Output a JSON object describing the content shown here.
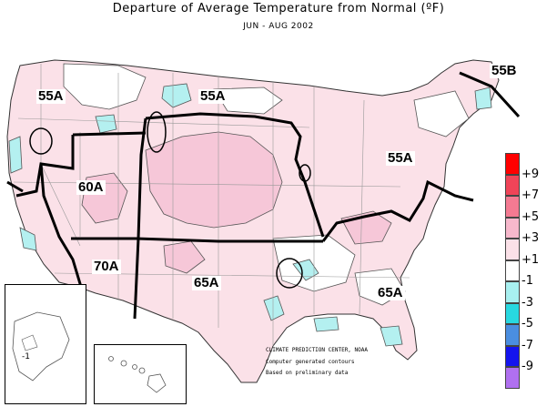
{
  "title": "Departure of Average Temperature from Normal (ºF)",
  "period": "JUN - AUG 2002",
  "colors": {
    "warm_fill": "#fbe1e8",
    "warmer_fill": "#f6c7d8",
    "cool_fill": "#b4f0f0",
    "region_boundary": "#000000",
    "contour": "#555555"
  },
  "regions": [
    {
      "label": "55A"
    },
    {
      "label": "55A"
    },
    {
      "label": "55B"
    },
    {
      "label": "55A"
    },
    {
      "label": "60A"
    },
    {
      "label": "70A"
    },
    {
      "label": "65A"
    },
    {
      "label": "65A"
    }
  ],
  "legend": {
    "ticks": [
      "+9",
      "+7",
      "+5",
      "+3",
      "+1",
      "-1",
      "-3",
      "-5",
      "-7",
      "-9"
    ],
    "colors": [
      "#ff0000",
      "#f04458",
      "#f47a92",
      "#f7b8cc",
      "#fbe1e8",
      "#ffffff",
      "#a8f0f0",
      "#28d8e0",
      "#4a8ee0",
      "#1414ee",
      "#b070f0"
    ]
  },
  "credits": [
    "CLIMATE PREDICTION CENTER, NOAA",
    "Computer generated contours",
    "Based on preliminary data"
  ],
  "inset_alaska": {
    "label": "-1"
  }
}
